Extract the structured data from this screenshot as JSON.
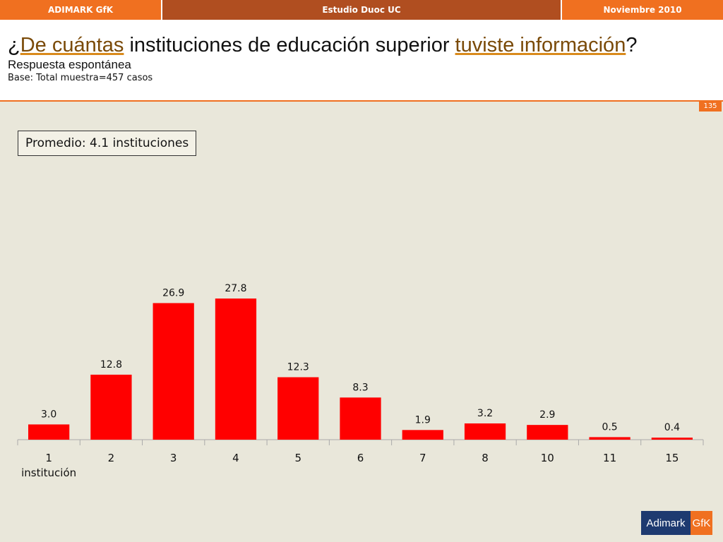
{
  "header": {
    "left": "ADIMARK GfK",
    "center": "Estudio Duoc UC",
    "right": "Noviembre 2010"
  },
  "title": {
    "p1": "¿",
    "h1": "De cuántas",
    "p2": " instituciones de educación superior ",
    "h2": "tuviste información",
    "p3": "?"
  },
  "subtitle": "Respuesta espontánea",
  "base": "Base: Total muestra=457 casos",
  "page_number": "135",
  "average_label": "Promedio: 4.1 instituciones",
  "logo": {
    "part1": "Adimark",
    "part2": "GfK"
  },
  "colors": {
    "accent": "#f07020",
    "bar": "#ff0000",
    "header_dark": "#b04e20"
  },
  "chart_data": {
    "type": "bar",
    "categories": [
      "1\ninstitución",
      "2",
      "3",
      "4",
      "5",
      "6",
      "7",
      "8",
      "10",
      "11",
      "15"
    ],
    "values": [
      3.0,
      12.8,
      26.9,
      27.8,
      12.3,
      8.3,
      1.9,
      3.2,
      2.9,
      0.5,
      0.4
    ],
    "value_labels": [
      "3.0",
      "12.8",
      "26.9",
      "27.8",
      "12.3",
      "8.3",
      "1.9",
      "3.2",
      "2.9",
      "0.5",
      "0.4"
    ],
    "ylim": [
      0,
      30
    ],
    "grid": false,
    "legend": "none"
  }
}
